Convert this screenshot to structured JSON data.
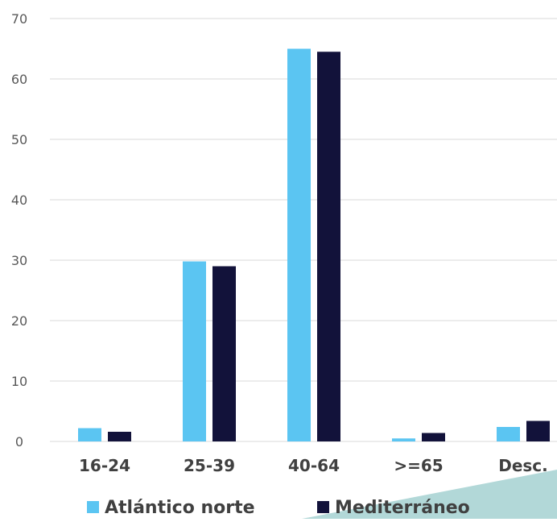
{
  "chart_data": {
    "type": "bar",
    "title": "",
    "xlabel": "",
    "ylabel": "",
    "categories": [
      "16-24",
      "25-39",
      "40-64",
      ">=65",
      "Desc."
    ],
    "series": [
      {
        "name": "Atlántico norte",
        "color": "#5BC5F2",
        "values": [
          2.2,
          29.8,
          65.0,
          0.5,
          2.4
        ]
      },
      {
        "name": "Mediterráneo",
        "color": "#12123A",
        "values": [
          1.6,
          29.0,
          64.5,
          1.4,
          3.4
        ]
      }
    ],
    "ylim": [
      0,
      70
    ],
    "yticks": [
      0,
      10,
      20,
      30,
      40,
      50,
      60,
      70
    ],
    "grid": true,
    "legend_position": "bottom"
  },
  "decoration": {
    "corner_shape_color": "#B2D8D8"
  }
}
